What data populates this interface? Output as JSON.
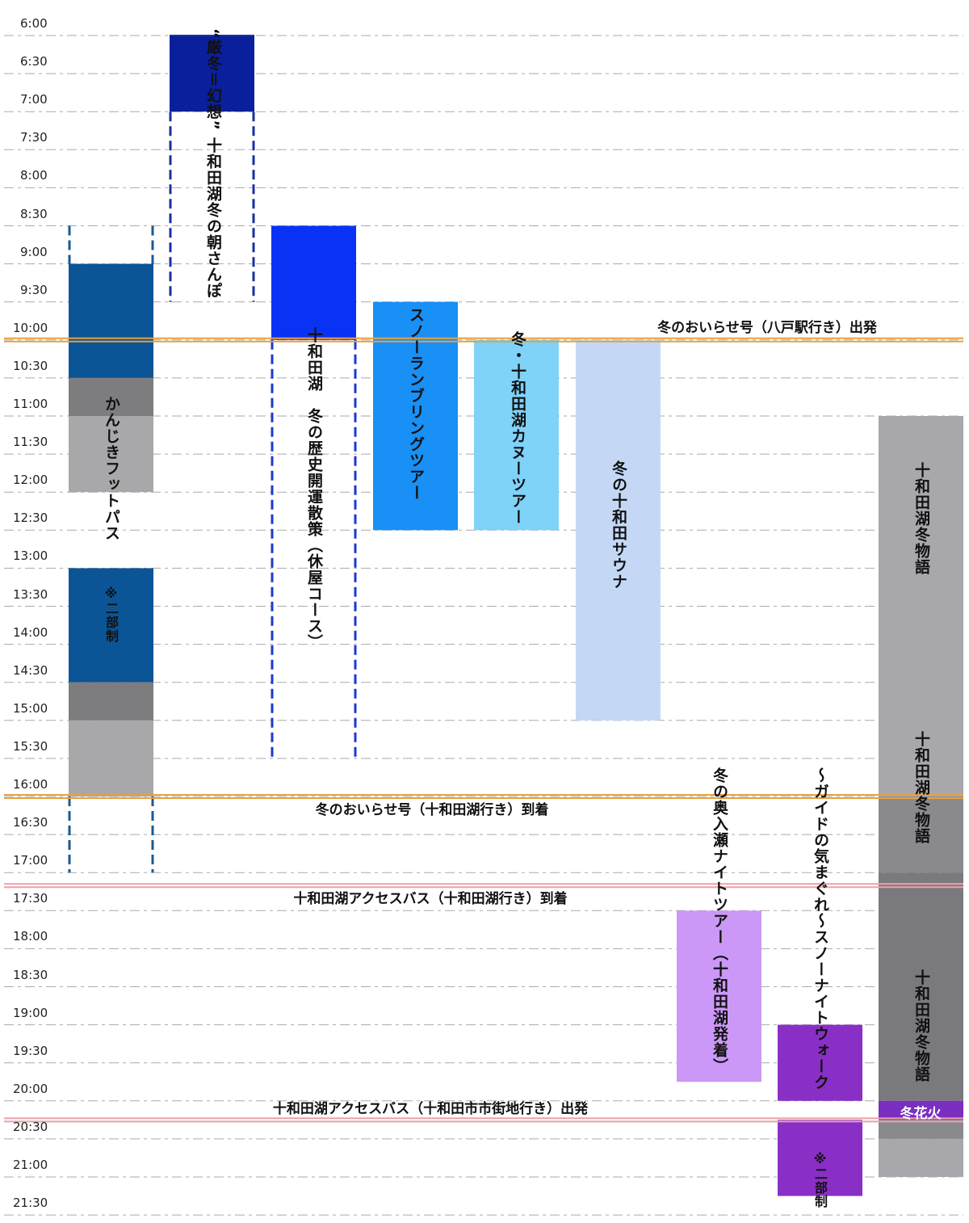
{
  "times": [
    "6:00",
    "6:30",
    "7:00",
    "7:30",
    "8:00",
    "8:30",
    "9:00",
    "9:30",
    "10:00",
    "10:30",
    "11:00",
    "11:30",
    "12:00",
    "12:30",
    "13:00",
    "13:30",
    "14:00",
    "14:30",
    "15:00",
    "15:30",
    "16:00",
    "16:30",
    "17:00",
    "17:30",
    "18:00",
    "18:30",
    "19:00",
    "19:30",
    "20:00",
    "20:30",
    "21:00",
    "21:30"
  ],
  "events": [
    {
      "title": "“厳冬＝幻想” 十和田湖冬の朝さんぽ"
    },
    {
      "title": "かんじきフットパス",
      "note": "※二部制"
    },
    {
      "title": "十和田湖　冬の歴史開運散策（休屋コース）"
    },
    {
      "title": "スノーランブリングツアー"
    },
    {
      "title": "冬・十和田湖カヌーツアー"
    },
    {
      "title": "冬の十和田サウナ"
    },
    {
      "title": "冬の奥入瀬ナイトツアー（十和田湖発着）"
    },
    {
      "title": "～ガイドの気まぐれ～スノーナイトウォーク",
      "note": "※二部制"
    },
    {
      "titles": [
        "十和田湖冬物語",
        "十和田湖冬物語",
        "十和田湖冬物語"
      ],
      "note": "冬花火"
    }
  ],
  "buses": [
    {
      "label": "冬のおいらせ号（八戸駅行き）出発"
    },
    {
      "label": "冬のおいらせ号（十和田湖行き）到着"
    },
    {
      "label": "十和田湖アクセスバス（十和田湖行き）到着"
    },
    {
      "label": "十和田湖アクセスバス（十和田市市街地行き）出発"
    }
  ]
}
